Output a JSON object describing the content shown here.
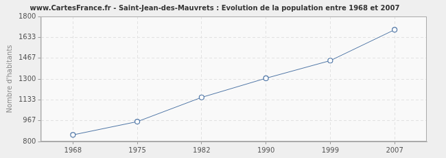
{
  "chart_data": {
    "type": "line",
    "title": "www.CartesFrance.fr - Saint-Jean-des-Mauvrets : Evolution de la population entre 1968 et 2007",
    "ylabel": "Nombre d'habitants",
    "categories": [
      "1968",
      "1975",
      "1982",
      "1990",
      "1999",
      "2007"
    ],
    "values": [
      853,
      959,
      1153,
      1306,
      1447,
      1694
    ],
    "color": "#4f76a6",
    "marker": "circle",
    "ylim": [
      800,
      1800
    ],
    "yticks": [
      800,
      967,
      1133,
      1300,
      1467,
      1633,
      1800
    ],
    "grid": true
  }
}
